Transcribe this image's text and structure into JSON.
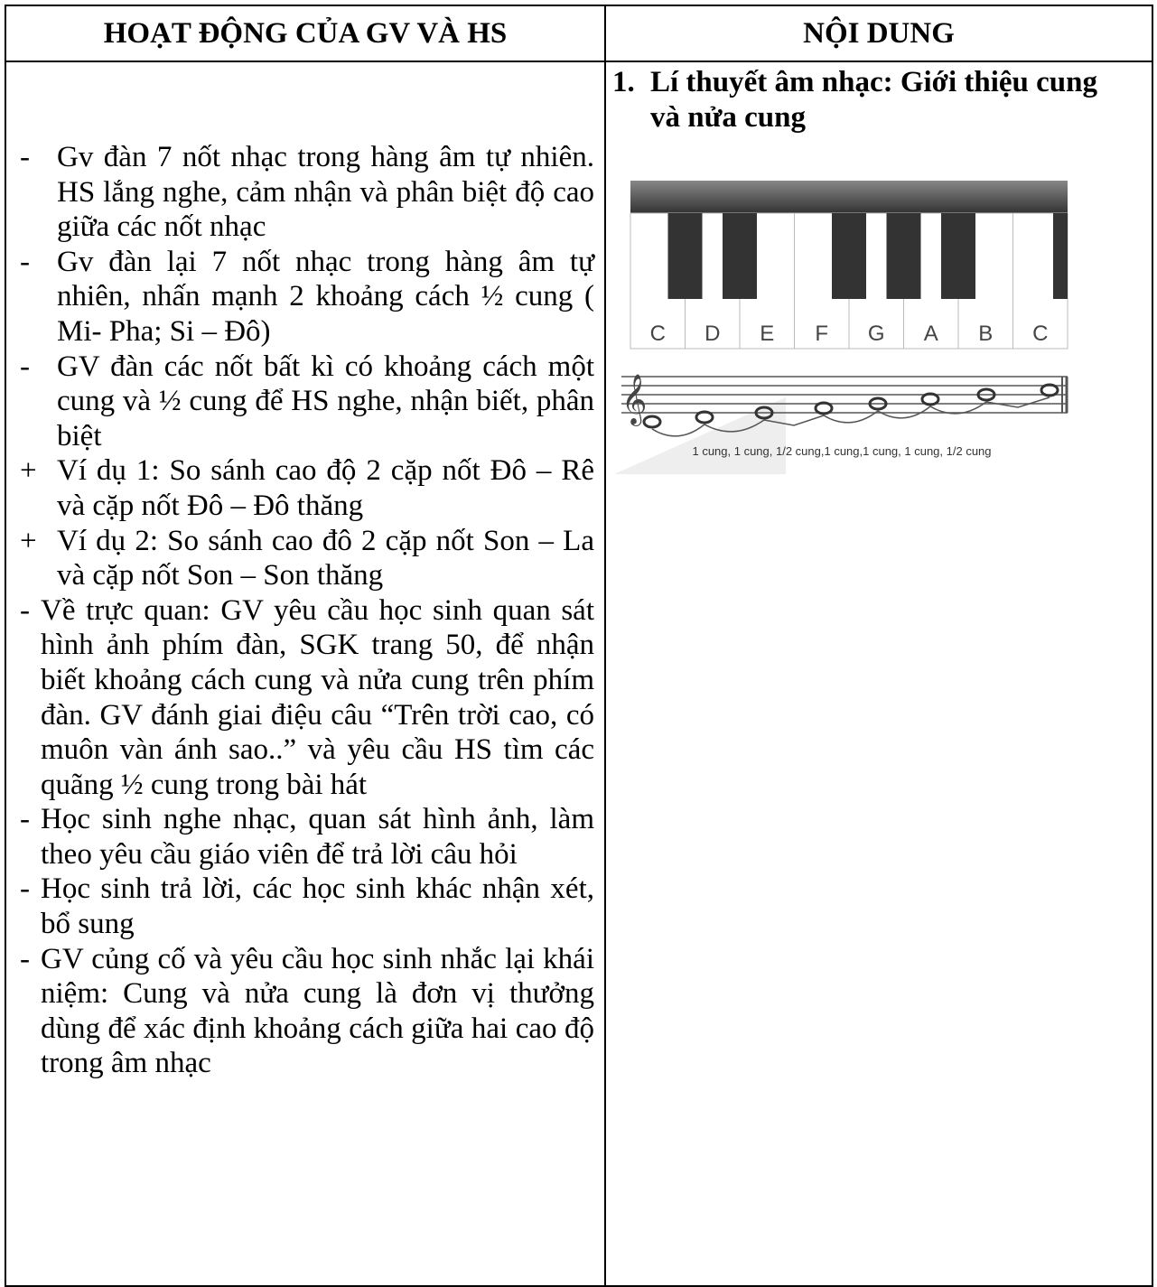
{
  "header": {
    "left": "HOẠT ĐỘNG CỦA GV VÀ HS",
    "right": "NỘI DUNG"
  },
  "left_items": [
    {
      "marker": "-",
      "text": "Gv đàn 7 nốt nhạc trong hàng âm tự nhiên. HS lắng nghe, cảm nhận và phân biệt độ cao giữa các nốt nhạc"
    },
    {
      "marker": "-",
      "text": "Gv đàn lại 7 nốt nhạc trong hàng âm tự nhiên, nhấn mạnh 2 khoảng cách ½ cung ( Mi- Pha; Si – Đô)"
    },
    {
      "marker": "-",
      "text": "GV đàn các nốt bất kì có khoảng cách một cung và ½ cung để HS nghe, nhận biết, phân biệt"
    },
    {
      "marker": "+",
      "text": "Ví dụ 1: So sánh cao độ 2 cặp nốt Đô – Rê và cặp nốt Đô – Đô thăng"
    },
    {
      "marker": "+",
      "text": "Ví dụ 2: So sánh cao đô 2 cặp nốt Son – La và cặp nốt Son – Son thăng"
    },
    {
      "marker": "-",
      "text": "Về trực quan: GV yêu cầu học sinh quan sát hình ảnh phím đàn, SGK trang 50, để nhận biết khoảng cách cung và nửa cung trên phím đàn. GV đánh giai điệu câu “Trên trời cao, có muôn vàn ánh sao..” và yêu cầu HS tìm các quãng ½ cung  trong bài hát"
    },
    {
      "marker": "-",
      "text": "Học sinh nghe nhạc, quan sát hình ảnh, làm theo yêu cầu giáo viên để trả lời câu hỏi"
    },
    {
      "marker": "-",
      "text": "Học sinh trả lời, các học sinh khác nhận xét, bổ sung"
    },
    {
      "marker": "-",
      "text": "GV củng cố và yêu cầu học sinh nhắc lại khái niệm: Cung và nửa cung là đơn vị thưởng dùng để xác định khoảng cách giữa hai cao độ trong âm nhạc"
    }
  ],
  "right": {
    "number": "1.",
    "heading": "Lí thuyết âm nhạc: Giới thiệu cung và nửa cung",
    "keys": [
      "C",
      "D",
      "E",
      "F",
      "G",
      "A",
      "B",
      "C"
    ],
    "caption": "1 cung, 1 cung, 1/2 cung,1 cung,1 cung, 1 cung, 1/2 cung"
  }
}
